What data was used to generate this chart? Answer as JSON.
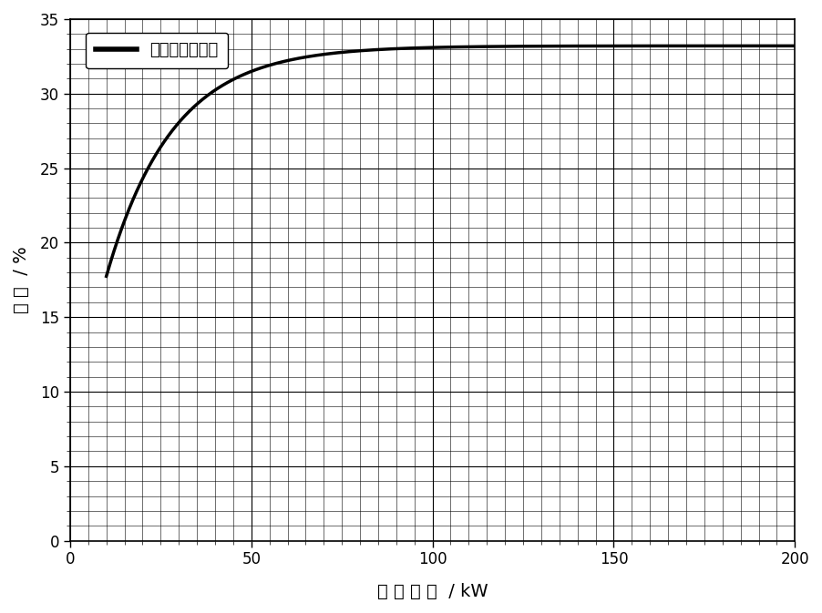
{
  "xlabel": "发 电 功 率  / kW",
  "ylabel": "效 率  / %",
  "legend_label": "效率与出力曲线",
  "xlim": [
    0,
    200
  ],
  "ylim": [
    0,
    35
  ],
  "xticks": [
    0,
    50,
    100,
    150,
    200
  ],
  "yticks": [
    0,
    5,
    10,
    15,
    20,
    25,
    30,
    35
  ],
  "x_minor_interval": 5,
  "y_minor_interval": 1,
  "line_color": "#000000",
  "line_width": 2.5,
  "grid_color_major": "#000000",
  "grid_color_minor": "#000000",
  "grid_lw_major": 0.8,
  "grid_lw_minor": 0.4,
  "background_color": "#ffffff",
  "x_start": 10,
  "x_end": 200,
  "curve_A": 33.2,
  "curve_B": 21.5,
  "curve_k": 0.055,
  "curve_x0": 4.0
}
